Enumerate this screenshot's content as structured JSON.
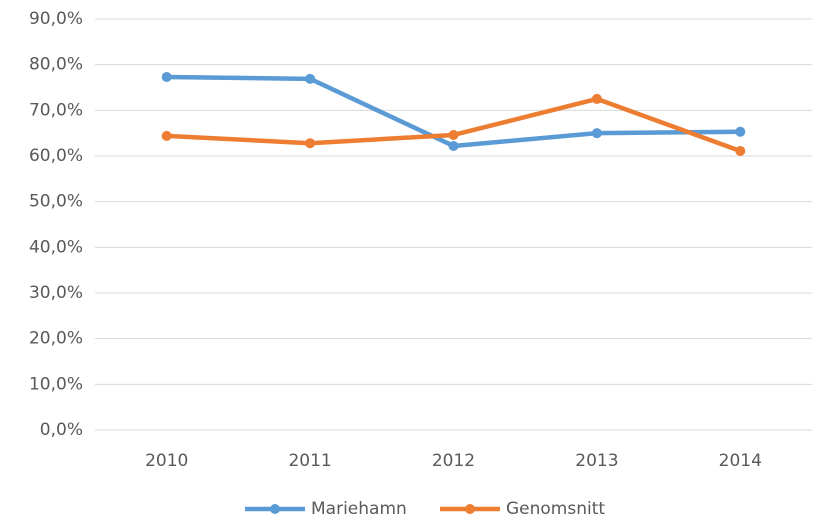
{
  "chart_data": {
    "type": "line",
    "categories": [
      "2010",
      "2011",
      "2012",
      "2013",
      "2014"
    ],
    "series": [
      {
        "name": "Mariehamn",
        "color": "#5b9bd5",
        "values": [
          77.3,
          76.9,
          62.2,
          65.0,
          65.3
        ]
      },
      {
        "name": "Genomsnitt",
        "color": "#ed7d31",
        "values": [
          64.4,
          62.8,
          64.6,
          72.5,
          61.1
        ]
      }
    ],
    "ylim": [
      0,
      90
    ],
    "yticks": [
      {
        "value": 0,
        "label": "0,0%"
      },
      {
        "value": 10,
        "label": "10,0%"
      },
      {
        "value": 20,
        "label": "20,0%"
      },
      {
        "value": 30,
        "label": "30,0%"
      },
      {
        "value": 40,
        "label": "40,0%"
      },
      {
        "value": 50,
        "label": "50,0%"
      },
      {
        "value": 60,
        "label": "60,0%"
      },
      {
        "value": 70,
        "label": "70,0%"
      },
      {
        "value": 80,
        "label": "80,0%"
      },
      {
        "value": 90,
        "label": "90,0%"
      }
    ],
    "grid": true,
    "legend": "bottom"
  }
}
